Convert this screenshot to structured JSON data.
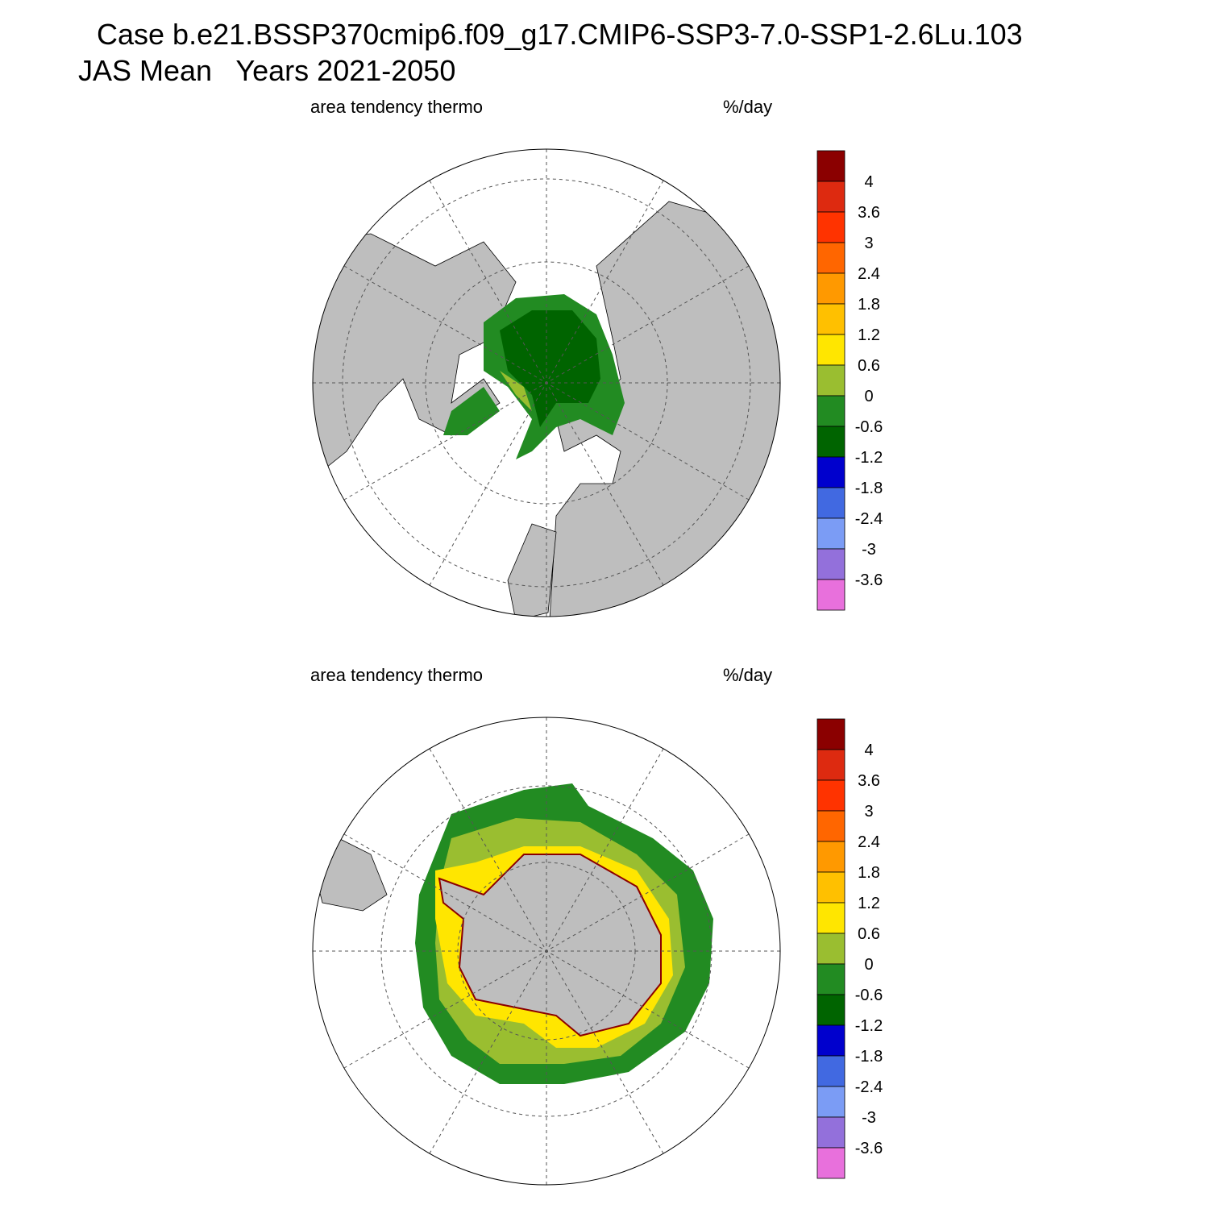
{
  "header": {
    "title_line1": "Case b.e21.BSSP370cmip6.f09_g17.CMIP6-SSP3-7.0-SSP1-2.6Lu.103",
    "title_line2": "JAS Mean   Years 2021-2050"
  },
  "panels": [
    {
      "left_title": "area tendency thermo",
      "right_title": "%/day",
      "colorbar": {
        "labels": [
          4,
          3.6,
          3,
          2.4,
          1.8,
          1.2,
          0.6,
          0,
          -0.6,
          -1.2,
          -1.8,
          -2.4,
          -3,
          -3.6
        ],
        "colors": [
          "#8b0000",
          "#dd2a10",
          "#ff3300",
          "#ff6600",
          "#ff9900",
          "#ffc000",
          "#ffe600",
          "#9abe30",
          "#228b22",
          "#006400",
          "#0000cd",
          "#4169e1",
          "#7b9cf5",
          "#9370db",
          "#e870dc"
        ]
      }
    },
    {
      "left_title": "area tendency thermo",
      "right_title": "%/day",
      "colorbar": {
        "labels": [
          4,
          3.6,
          3,
          2.4,
          1.8,
          1.2,
          0.6,
          0,
          -0.6,
          -1.2,
          -1.8,
          -2.4,
          -3,
          -3.6
        ],
        "colors": [
          "#8b0000",
          "#dd2a10",
          "#ff3300",
          "#ff6600",
          "#ff9900",
          "#ffc000",
          "#ffe600",
          "#9abe30",
          "#228b22",
          "#006400",
          "#0000cd",
          "#4169e1",
          "#7b9cf5",
          "#9370db",
          "#e870dc"
        ]
      }
    }
  ]
}
